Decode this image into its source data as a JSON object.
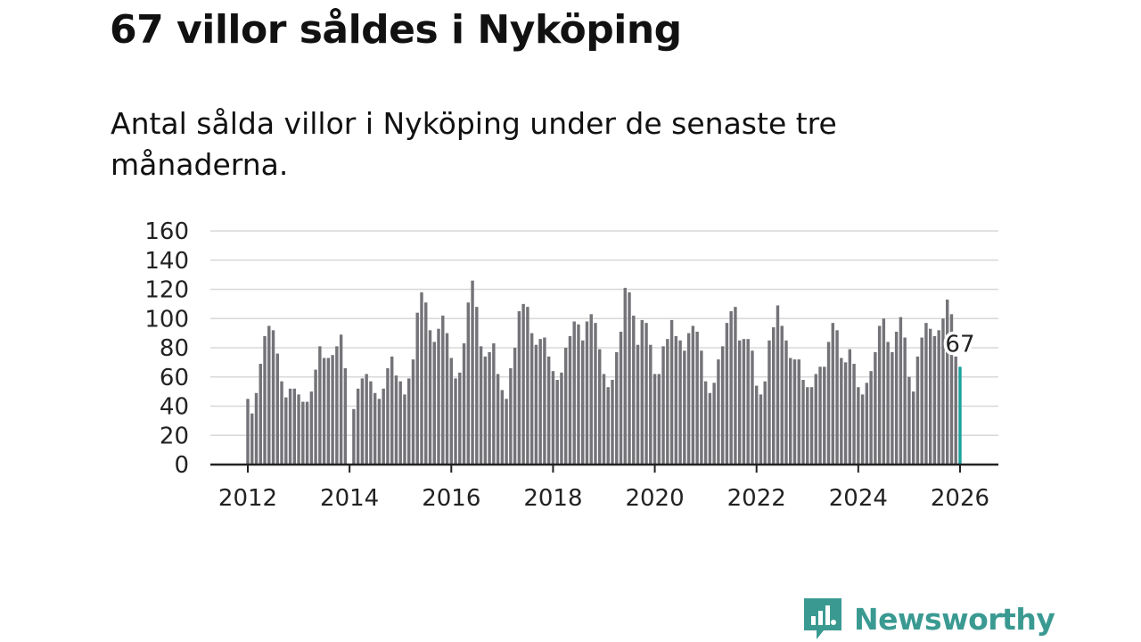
{
  "headline": "67 villor såldes i Nyköping",
  "subtitle": "Antal sålda villor i Nyköping under de senaste tre månaderna.",
  "brand": {
    "name": "Newsworthy",
    "icon": "newsworthy-logo-icon",
    "color": "#3a9a92"
  },
  "colors": {
    "bar": "#737378",
    "highlight": "#1aa39c",
    "grid": "#d8d8d8",
    "axis": "#222222"
  },
  "chart_data": {
    "type": "bar",
    "title": "67 villor såldes i Nyköping",
    "ylabel": "",
    "xlabel": "",
    "ylim": [
      0,
      160
    ],
    "yticks": [
      0,
      20,
      40,
      60,
      80,
      100,
      120,
      140,
      160
    ],
    "xticks": [
      "2012",
      "2014",
      "2016",
      "2018",
      "2020",
      "2022",
      "2024",
      "2026"
    ],
    "grid": true,
    "start": "2012-01",
    "highlight_label": "67",
    "values": [
      45,
      35,
      49,
      69,
      88,
      95,
      92,
      76,
      57,
      46,
      52,
      52,
      48,
      43,
      43,
      50,
      65,
      81,
      73,
      73,
      75,
      81,
      89,
      66,
      0,
      38,
      52,
      59,
      62,
      57,
      49,
      45,
      52,
      66,
      74,
      61,
      57,
      48,
      59,
      72,
      104,
      118,
      111,
      92,
      84,
      93,
      102,
      90,
      73,
      59,
      63,
      83,
      111,
      126,
      108,
      81,
      74,
      77,
      83,
      62,
      51,
      45,
      66,
      80,
      105,
      110,
      108,
      90,
      82,
      86,
      87,
      74,
      64,
      58,
      63,
      80,
      88,
      98,
      96,
      85,
      98,
      103,
      97,
      79,
      62,
      53,
      58,
      77,
      91,
      121,
      118,
      102,
      82,
      99,
      97,
      82,
      62,
      62,
      81,
      86,
      99,
      88,
      85,
      78,
      90,
      95,
      91,
      78,
      57,
      49,
      56,
      72,
      81,
      97,
      105,
      108,
      85,
      86,
      86,
      78,
      54,
      48,
      57,
      85,
      94,
      109,
      95,
      85,
      73,
      72,
      72,
      58,
      53,
      53,
      62,
      67,
      67,
      84,
      97,
      92,
      73,
      70,
      79,
      69,
      53,
      48,
      56,
      64,
      77,
      95,
      100,
      84,
      77,
      91,
      101,
      87,
      60,
      50,
      74,
      87,
      97,
      93,
      88,
      92,
      100,
      113,
      103,
      74,
      67
    ]
  }
}
